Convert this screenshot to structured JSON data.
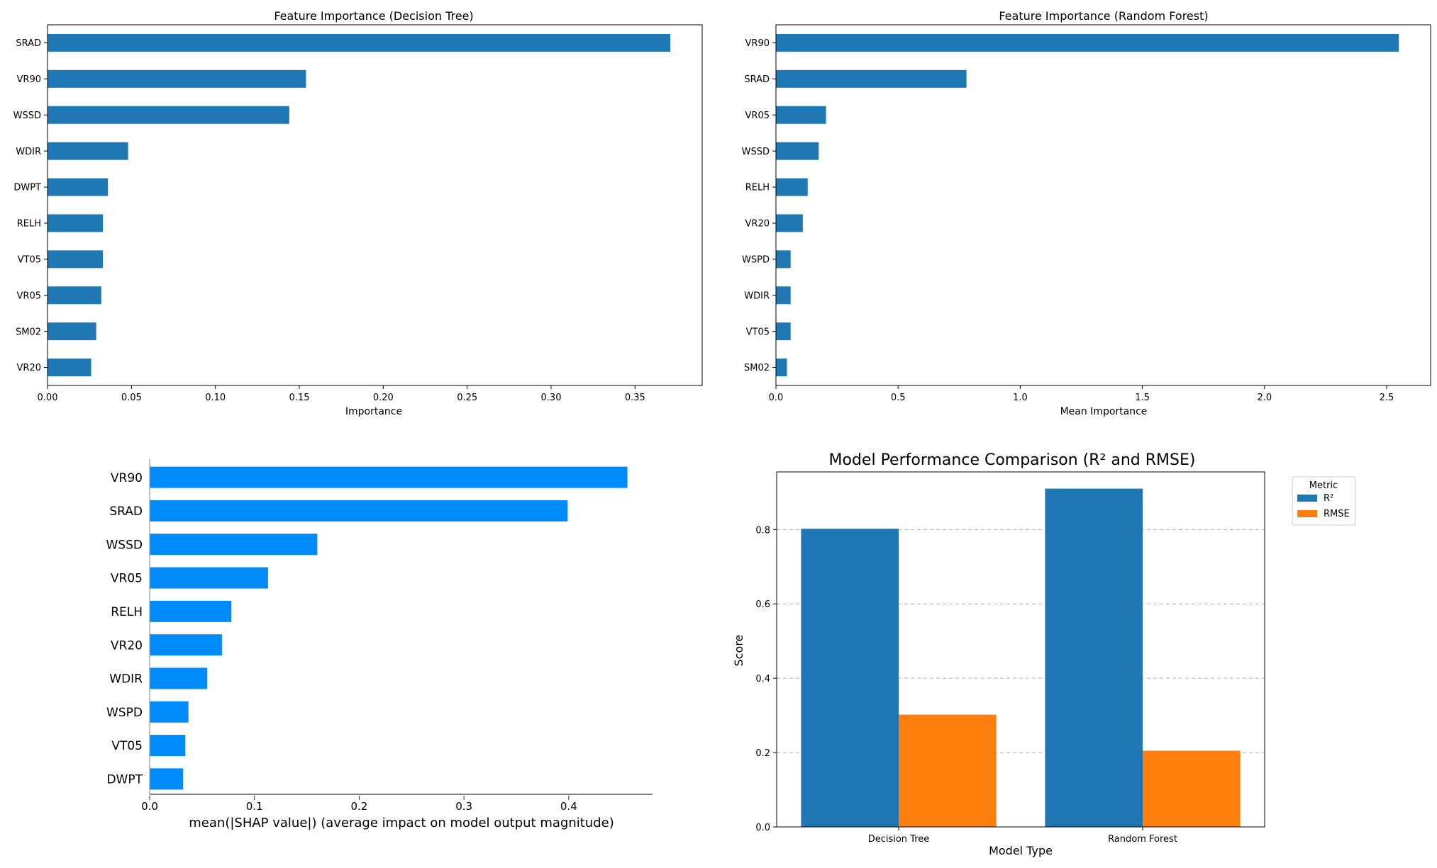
{
  "chart_data": [
    {
      "type": "bar",
      "orientation": "horizontal",
      "title": "Feature Importance (Decision Tree)",
      "xlabel": "Importance",
      "ylabel": "",
      "categories": [
        "SRAD",
        "VR90",
        "WSSD",
        "WDIR",
        "DWPT",
        "RELH",
        "VT05",
        "VR05",
        "SM02",
        "VR20"
      ],
      "values": [
        0.371,
        0.154,
        0.144,
        0.048,
        0.036,
        0.033,
        0.033,
        0.032,
        0.029,
        0.026
      ],
      "xlim": [
        0,
        0.39
      ],
      "xticks": [
        0.0,
        0.05,
        0.1,
        0.15,
        0.2,
        0.25,
        0.3,
        0.35
      ],
      "xtick_labels": [
        "0.00",
        "0.05",
        "0.10",
        "0.15",
        "0.20",
        "0.25",
        "0.30",
        "0.35"
      ],
      "color": "#1f77b4"
    },
    {
      "type": "bar",
      "orientation": "horizontal",
      "title": "Feature Importance (Random Forest)",
      "xlabel": "Mean Importance",
      "ylabel": "",
      "categories": [
        "VR90",
        "SRAD",
        "VR05",
        "WSSD",
        "RELH",
        "VR20",
        "WSPD",
        "WDIR",
        "VT05",
        "SM02"
      ],
      "values": [
        2.55,
        0.78,
        0.205,
        0.175,
        0.13,
        0.11,
        0.06,
        0.06,
        0.06,
        0.045
      ],
      "xlim": [
        0,
        2.68
      ],
      "xticks": [
        0.0,
        0.5,
        1.0,
        1.5,
        2.0,
        2.5
      ],
      "xtick_labels": [
        "0.0",
        "0.5",
        "1.0",
        "1.5",
        "2.0",
        "2.5"
      ],
      "color": "#1f77b4"
    },
    {
      "type": "bar",
      "orientation": "horizontal",
      "title": "",
      "xlabel": "mean(|SHAP value|) (average impact on model output magnitude)",
      "ylabel": "",
      "categories": [
        "VR90",
        "SRAD",
        "WSSD",
        "VR05",
        "RELH",
        "VR20",
        "WDIR",
        "WSPD",
        "VT05",
        "DWPT"
      ],
      "values": [
        0.456,
        0.399,
        0.16,
        0.113,
        0.078,
        0.069,
        0.055,
        0.037,
        0.034,
        0.032
      ],
      "xlim": [
        0,
        0.48
      ],
      "xticks": [
        0.0,
        0.1,
        0.2,
        0.3,
        0.4
      ],
      "xtick_labels": [
        "0.0",
        "0.1",
        "0.2",
        "0.3",
        "0.4"
      ],
      "color": "#008bfb"
    },
    {
      "type": "bar",
      "orientation": "vertical",
      "title": "Model Performance Comparison (R² and RMSE)",
      "xlabel": "Model Type",
      "ylabel": "Score",
      "categories": [
        "Decision Tree",
        "Random Forest"
      ],
      "series": [
        {
          "name": "R²",
          "values": [
            0.802,
            0.91
          ],
          "color": "#1f77b4"
        },
        {
          "name": "RMSE",
          "values": [
            0.302,
            0.205
          ],
          "color": "#ff7f0e"
        }
      ],
      "ylim": [
        0,
        0.955
      ],
      "yticks": [
        0.0,
        0.2,
        0.4,
        0.6,
        0.8
      ],
      "ytick_labels": [
        "0.0",
        "0.2",
        "0.4",
        "0.6",
        "0.8"
      ],
      "grid": "y-dashed",
      "legend": {
        "title": "Metric",
        "placement": "outside-right-top"
      }
    }
  ]
}
